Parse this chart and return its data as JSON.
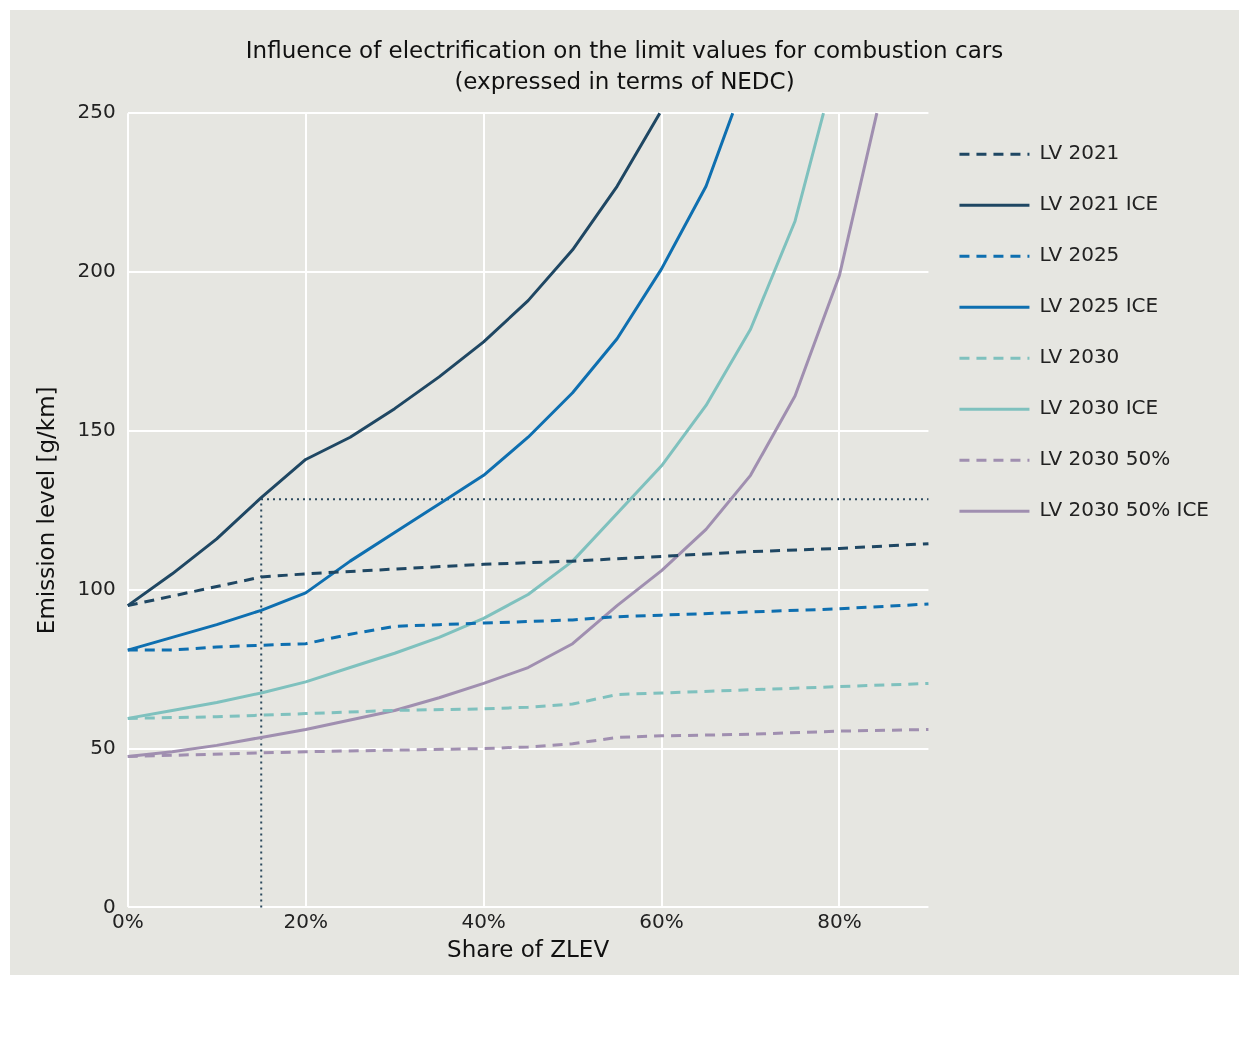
{
  "chart_data": {
    "type": "line",
    "title": "Influence of electrification on the limit values for combustion cars",
    "subtitle": "(expressed in terms of NEDC)",
    "xlabel": "Share of ZLEV",
    "ylabel": "Emission level [g/km]",
    "xlim": [
      0,
      90
    ],
    "xticks": [
      {
        "value": 0,
        "label": "0%"
      },
      {
        "value": 20,
        "label": "20%"
      },
      {
        "value": 40,
        "label": "40%"
      },
      {
        "value": 60,
        "label": "60%"
      },
      {
        "value": 80,
        "label": "80%"
      }
    ],
    "ylim": [
      0,
      250
    ],
    "yticks": [
      0,
      50,
      100,
      150,
      200,
      250
    ],
    "grid": true,
    "legend": "right",
    "marker": "none",
    "series": [
      {
        "name": "LV 2021",
        "color": "#1f4763",
        "line_style": "dashed",
        "x": [
          0,
          5,
          10,
          15,
          20,
          30,
          40,
          50,
          60,
          70,
          80,
          90
        ],
        "values": [
          95,
          98,
          101,
          104,
          105,
          106.5,
          108,
          109,
          110.5,
          112,
          113,
          114.5
        ]
      },
      {
        "name": "LV 2021 ICE",
        "color": "#1f4763",
        "line_style": "solid",
        "x": [
          0,
          5,
          10,
          15,
          20,
          25,
          30,
          35,
          40,
          45,
          50,
          55,
          59.8
        ],
        "values": [
          95,
          105,
          116,
          129,
          141,
          148,
          157,
          167,
          178,
          191,
          207,
          227,
          250
        ]
      },
      {
        "name": "LV 2025",
        "color": "#0e6fb0",
        "line_style": "dashed",
        "x": [
          0,
          5,
          10,
          15,
          20,
          25,
          30,
          35,
          40,
          45,
          50,
          55,
          60,
          70,
          80,
          90
        ],
        "values": [
          81,
          81,
          82,
          82.5,
          83,
          86,
          88.5,
          89,
          89.5,
          90,
          90.5,
          91.5,
          92,
          93,
          94,
          95.5
        ]
      },
      {
        "name": "LV 2025 ICE",
        "color": "#0e6fb0",
        "line_style": "solid",
        "x": [
          0,
          5,
          10,
          15,
          20,
          25,
          30,
          35,
          40,
          45,
          50,
          55,
          60,
          65,
          68
        ],
        "values": [
          81,
          85,
          89,
          93.5,
          99,
          109,
          118,
          127,
          136,
          148,
          162,
          179,
          201,
          227,
          250
        ]
      },
      {
        "name": "LV 2030",
        "color": "#7fc1be",
        "line_style": "dashed",
        "x": [
          0,
          10,
          20,
          30,
          40,
          45,
          50,
          55,
          60,
          70,
          80,
          90
        ],
        "values": [
          59.5,
          60,
          61,
          62,
          62.5,
          63,
          64,
          67,
          67.5,
          68.5,
          69.5,
          70.5
        ]
      },
      {
        "name": "LV 2030 ICE",
        "color": "#7fc1be",
        "line_style": "solid",
        "x": [
          0,
          5,
          10,
          15,
          20,
          25,
          30,
          35,
          40,
          45,
          50,
          55,
          60,
          65,
          70,
          75,
          78.2
        ],
        "values": [
          59.5,
          62,
          64.5,
          67.5,
          71,
          75.5,
          80,
          85,
          91,
          98.5,
          109,
          124,
          139,
          158,
          182,
          216,
          250
        ]
      },
      {
        "name": "LV 2030 50%",
        "color": "#a08fb0",
        "line_style": "dashed",
        "x": [
          0,
          20,
          30,
          40,
          45,
          50,
          55,
          60,
          70,
          80,
          90
        ],
        "values": [
          47.5,
          49,
          49.5,
          50,
          50.5,
          51.5,
          53.5,
          54,
          54.5,
          55.5,
          56
        ]
      },
      {
        "name": "LV 2030 50% ICE",
        "color": "#a08fb0",
        "line_style": "solid",
        "x": [
          0,
          5,
          10,
          15,
          20,
          25,
          30,
          35,
          40,
          45,
          50,
          55,
          60,
          65,
          70,
          75,
          80,
          84.2
        ],
        "values": [
          47.5,
          49,
          51,
          53.5,
          56,
          59,
          62,
          66,
          70.5,
          75.5,
          83,
          95,
          106,
          119,
          136,
          161,
          199,
          250
        ]
      },
      {
        "color": "#2c4a5e",
        "line_style": "dotted",
        "x": [
          15,
          15,
          90
        ],
        "values": [
          0,
          128.5,
          128.5
        ]
      }
    ]
  }
}
